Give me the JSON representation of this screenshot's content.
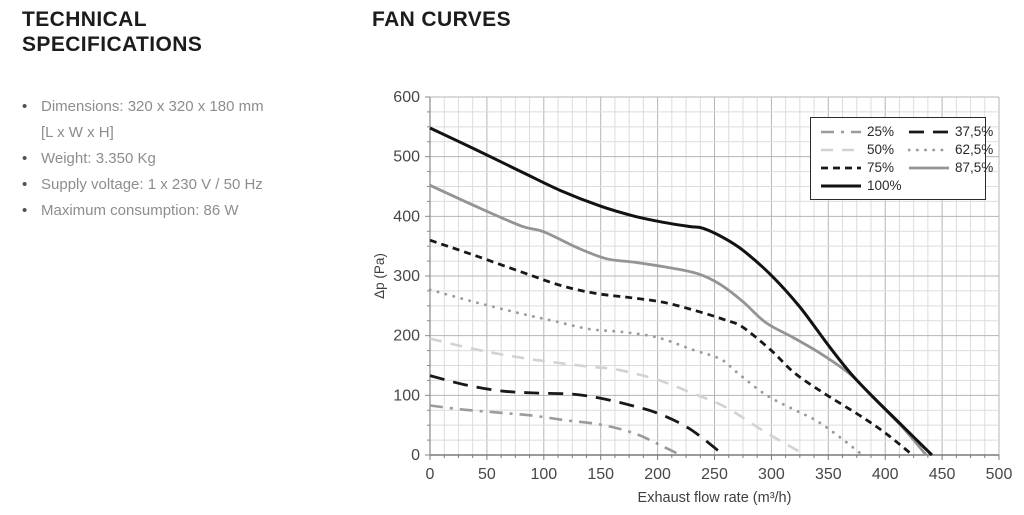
{
  "specs": {
    "title": "TECHNICAL SPECIFICATIONS",
    "items": [
      {
        "line1": "Dimensions: 320 x 320 x 180 mm",
        "line2": "[L x W x H]"
      },
      {
        "line1": "Weight: 3.350 Kg"
      },
      {
        "line1": "Supply voltage: 1 x 230 V / 50 Hz"
      },
      {
        "line1": "Maximum consumption: 86 W"
      }
    ],
    "bullet": "•"
  },
  "chart_data": {
    "type": "line",
    "title": "FAN CURVES",
    "xlabel": "Exhaust flow rate (m³/h)",
    "ylabel": "Δp (Pa)",
    "xlim": [
      0,
      500
    ],
    "ylim": [
      0,
      600
    ],
    "x_ticks": [
      0,
      50,
      100,
      150,
      200,
      250,
      300,
      350,
      400,
      450,
      500
    ],
    "y_ticks": [
      0,
      100,
      200,
      300,
      400,
      500,
      600
    ],
    "grid": {
      "on": true,
      "minor_x_step": 12.5,
      "minor_y_step": 25,
      "major_x_step": 50,
      "major_y_step": 100
    },
    "legend_position": "top-right",
    "legend_order": [
      "25%",
      "37,5%",
      "50%",
      "62,5%",
      "75%",
      "87,5%",
      "100%"
    ],
    "series": [
      {
        "id": "50",
        "name": "50%",
        "color": "#d2d2d2",
        "dash": "12 9",
        "width": 2.6,
        "points": [
          [
            0,
            195
          ],
          [
            40,
            177
          ],
          [
            80,
            163
          ],
          [
            110,
            155
          ],
          [
            140,
            148
          ],
          [
            165,
            143
          ],
          [
            200,
            126
          ],
          [
            230,
            104
          ],
          [
            260,
            80
          ],
          [
            295,
            38
          ],
          [
            330,
            0
          ]
        ]
      },
      {
        "id": "25",
        "name": "25%",
        "color": "#9b9b9b",
        "dash": "13 7 3 7",
        "width": 2.6,
        "points": [
          [
            0,
            83
          ],
          [
            30,
            76
          ],
          [
            60,
            71
          ],
          [
            90,
            66
          ],
          [
            120,
            58
          ],
          [
            150,
            51
          ],
          [
            180,
            36
          ],
          [
            205,
            14
          ],
          [
            220,
            0
          ]
        ]
      },
      {
        "id": "62-5",
        "name": "62,5%",
        "color": "#9b9b9b",
        "dash": "0.2 8",
        "width": 2.8,
        "cap": "round",
        "points": [
          [
            0,
            277
          ],
          [
            40,
            256
          ],
          [
            80,
            237
          ],
          [
            110,
            224
          ],
          [
            140,
            211
          ],
          [
            170,
            206
          ],
          [
            200,
            197
          ],
          [
            230,
            177
          ],
          [
            255,
            161
          ],
          [
            270,
            138
          ],
          [
            295,
            101
          ],
          [
            320,
            76
          ],
          [
            340,
            57
          ],
          [
            360,
            30
          ],
          [
            380,
            0
          ]
        ]
      },
      {
        "id": "37-5",
        "name": "37,5%",
        "color": "#181818",
        "dash": "15 9",
        "width": 2.8,
        "points": [
          [
            0,
            133
          ],
          [
            30,
            118
          ],
          [
            60,
            108
          ],
          [
            90,
            104
          ],
          [
            125,
            102
          ],
          [
            150,
            95
          ],
          [
            175,
            84
          ],
          [
            200,
            70
          ],
          [
            228,
            44
          ],
          [
            258,
            0
          ]
        ]
      },
      {
        "id": "75",
        "name": "75%",
        "color": "#181818",
        "dash": "7 5",
        "width": 2.8,
        "points": [
          [
            0,
            360
          ],
          [
            40,
            334
          ],
          [
            80,
            307
          ],
          [
            115,
            284
          ],
          [
            145,
            271
          ],
          [
            175,
            264
          ],
          [
            205,
            256
          ],
          [
            235,
            241
          ],
          [
            260,
            226
          ],
          [
            275,
            214
          ],
          [
            300,
            175
          ],
          [
            320,
            138
          ],
          [
            345,
            105
          ],
          [
            377,
            67
          ],
          [
            400,
            37
          ],
          [
            424,
            0
          ]
        ]
      },
      {
        "id": "87-5",
        "name": "87,5%",
        "color": "#949494",
        "dash": null,
        "width": 2.8,
        "points": [
          [
            0,
            452
          ],
          [
            40,
            417
          ],
          [
            80,
            384
          ],
          [
            100,
            374
          ],
          [
            130,
            347
          ],
          [
            155,
            329
          ],
          [
            180,
            323
          ],
          [
            210,
            314
          ],
          [
            235,
            304
          ],
          [
            255,
            286
          ],
          [
            275,
            257
          ],
          [
            295,
            222
          ],
          [
            320,
            196
          ],
          [
            345,
            168
          ],
          [
            370,
            134
          ],
          [
            390,
            95
          ],
          [
            415,
            47
          ],
          [
            436,
            0
          ]
        ]
      },
      {
        "id": "100",
        "name": "100%",
        "color": "#121212",
        "dash": null,
        "width": 3,
        "points": [
          [
            0,
            548
          ],
          [
            40,
            512
          ],
          [
            80,
            475
          ],
          [
            115,
            443
          ],
          [
            150,
            417
          ],
          [
            180,
            400
          ],
          [
            205,
            390
          ],
          [
            228,
            383
          ],
          [
            240,
            380
          ],
          [
            258,
            364
          ],
          [
            275,
            343
          ],
          [
            300,
            301
          ],
          [
            325,
            248
          ],
          [
            350,
            184
          ],
          [
            370,
            136
          ],
          [
            390,
            96
          ],
          [
            415,
            49
          ],
          [
            441,
            0
          ]
        ]
      }
    ]
  }
}
